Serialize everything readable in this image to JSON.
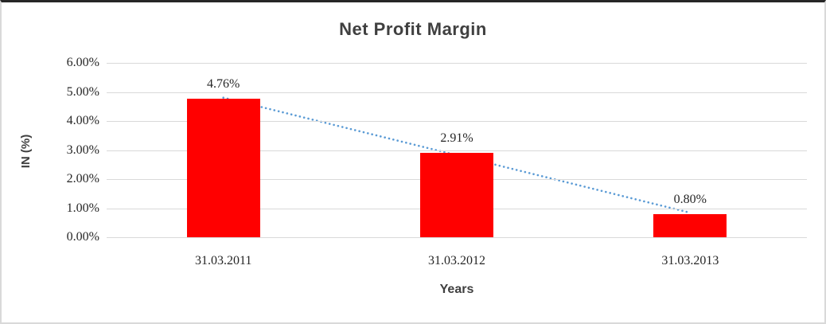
{
  "chart_data": {
    "type": "bar",
    "title": "Net Profit Margin",
    "xlabel": "Years",
    "ylabel": "IN (%)",
    "categories": [
      "31.03.2011",
      "31.03.2012",
      "31.03.2013"
    ],
    "values": [
      4.76,
      2.91,
      0.8
    ],
    "data_labels": [
      "4.76%",
      "2.91%",
      "0.80%"
    ],
    "y_ticks": [
      {
        "label": "6.00%",
        "value": 6
      },
      {
        "label": "5.00%",
        "value": 5
      },
      {
        "label": "4.00%",
        "value": 4
      },
      {
        "label": "3.00%",
        "value": 3
      },
      {
        "label": "2.00%",
        "value": 2
      },
      {
        "label": "1.00%",
        "value": 1
      },
      {
        "label": "0.00%",
        "value": 0
      }
    ],
    "ylim": [
      0,
      6
    ],
    "grid": "horizontal",
    "legend": "none",
    "bar_color": "#ff0000",
    "gridline_color": "#d9d9d9",
    "text_color": "#262626",
    "title_color": "#404040",
    "trendline": {
      "type": "linear",
      "style": "dotted",
      "color": "#5b9bd5"
    }
  }
}
